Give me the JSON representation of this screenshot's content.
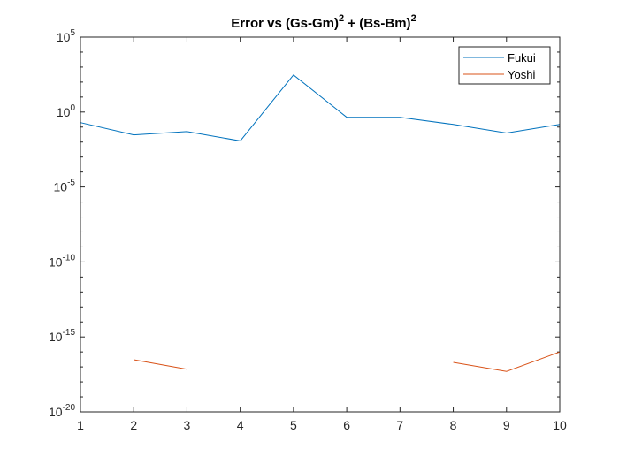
{
  "chart_data": {
    "type": "line",
    "title": {
      "part1": "Error vs (Gs-Gm)",
      "sup1": "2",
      "part2": " + (Bs-Bm)",
      "sup2": "2"
    },
    "xlabel": "",
    "ylabel": "",
    "yscale": "log",
    "xlim": [
      1,
      10
    ],
    "ylim_exponent": [
      -20,
      5
    ],
    "x_ticks": [
      "1",
      "2",
      "3",
      "4",
      "5",
      "6",
      "7",
      "8",
      "9",
      "10"
    ],
    "y_ticks": [
      {
        "base": "10",
        "exp": "5",
        "value_exponent": 5
      },
      {
        "base": "10",
        "exp": "0",
        "value_exponent": 0
      },
      {
        "base": "10",
        "exp": "-5",
        "value_exponent": -5
      },
      {
        "base": "10",
        "exp": "-10",
        "value_exponent": -10
      },
      {
        "base": "10",
        "exp": "-15",
        "value_exponent": -15
      },
      {
        "base": "10",
        "exp": "-20",
        "value_exponent": -20
      }
    ],
    "legend_position": "top-right",
    "series": [
      {
        "name": "Fukui",
        "color": "#0072BD",
        "x": [
          1,
          2,
          3,
          4,
          5,
          6,
          7,
          8,
          9,
          10
        ],
        "y": [
          0.2,
          0.03,
          0.05,
          0.012,
          300,
          0.45,
          0.45,
          0.15,
          0.04,
          0.15
        ]
      },
      {
        "name": "Yoshi",
        "color": "#D95319",
        "x": [
          1,
          2,
          3,
          4,
          5,
          6,
          7,
          8,
          9,
          10
        ],
        "y": [
          null,
          3e-17,
          7e-18,
          null,
          null,
          null,
          null,
          2e-17,
          5e-18,
          1e-16
        ]
      }
    ]
  }
}
